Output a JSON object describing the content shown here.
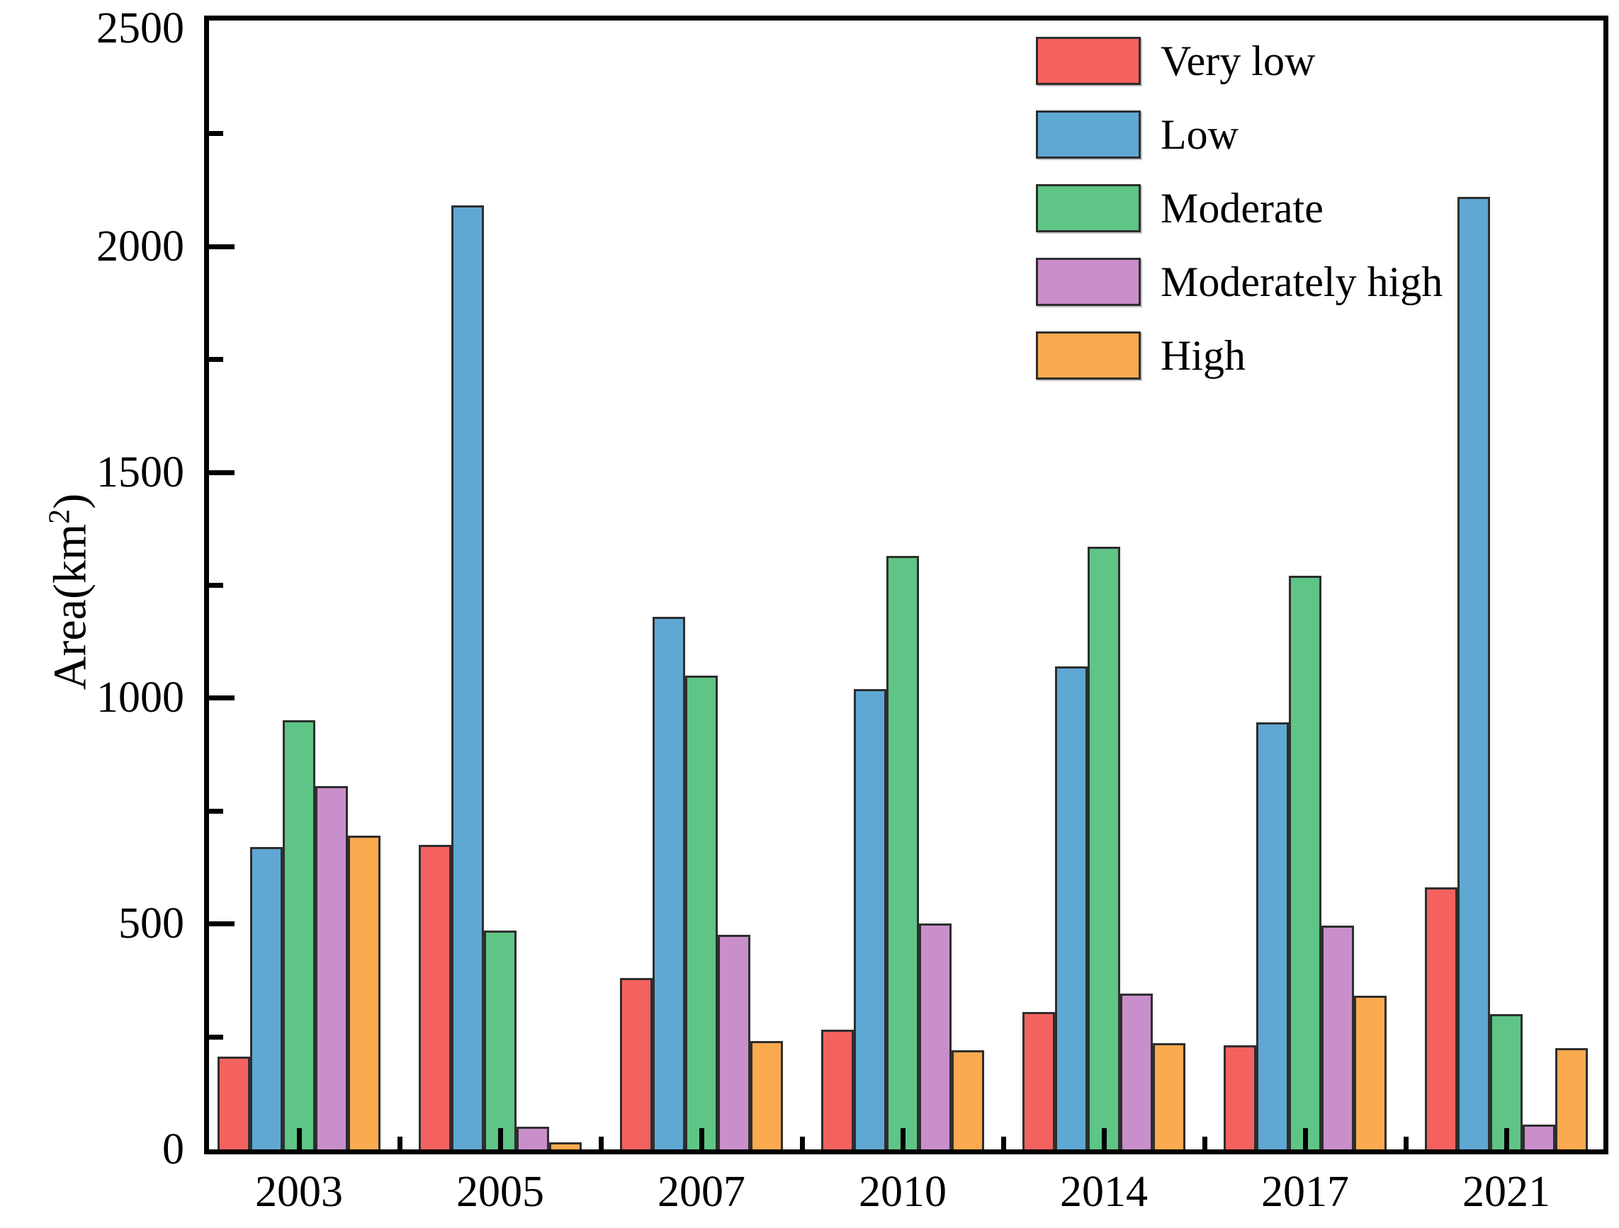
{
  "chart_data": {
    "type": "bar",
    "title": "",
    "xlabel": "",
    "ylabel": "Area(km2)",
    "ylabel_parts": {
      "base": "Area(km",
      "sup": "2",
      "suffix": ")"
    },
    "categories": [
      "2003",
      "2005",
      "2007",
      "2010",
      "2014",
      "2017",
      "2021"
    ],
    "series": [
      {
        "name": "Very low",
        "color": "#f4625f",
        "values": [
          205,
          675,
          380,
          265,
          305,
          230,
          580
        ]
      },
      {
        "name": "Low",
        "color": "#5fa8d4",
        "values": [
          670,
          2090,
          1180,
          1020,
          1070,
          945,
          2110
        ]
      },
      {
        "name": "Moderate",
        "color": "#5ec586",
        "values": [
          950,
          485,
          1050,
          1315,
          1335,
          1270,
          300
        ]
      },
      {
        "name": "Moderately high",
        "color": "#c98fcb",
        "values": [
          805,
          50,
          475,
          500,
          345,
          495,
          55
        ]
      },
      {
        "name": "High",
        "color": "#fbaa4f",
        "values": [
          695,
          15,
          240,
          220,
          235,
          340,
          225
        ]
      }
    ],
    "ylim": [
      0,
      2500
    ],
    "yticks": [
      0,
      500,
      1000,
      1500,
      2000,
      2500
    ],
    "ytick_labels": [
      "0",
      "500",
      "1000",
      "1500",
      "2000",
      "2500"
    ],
    "minor_tick_step": 250,
    "grid": false,
    "legend_position": "top-right",
    "bar_edge_color": "#2e2e2e",
    "axis_color": "#000000"
  }
}
